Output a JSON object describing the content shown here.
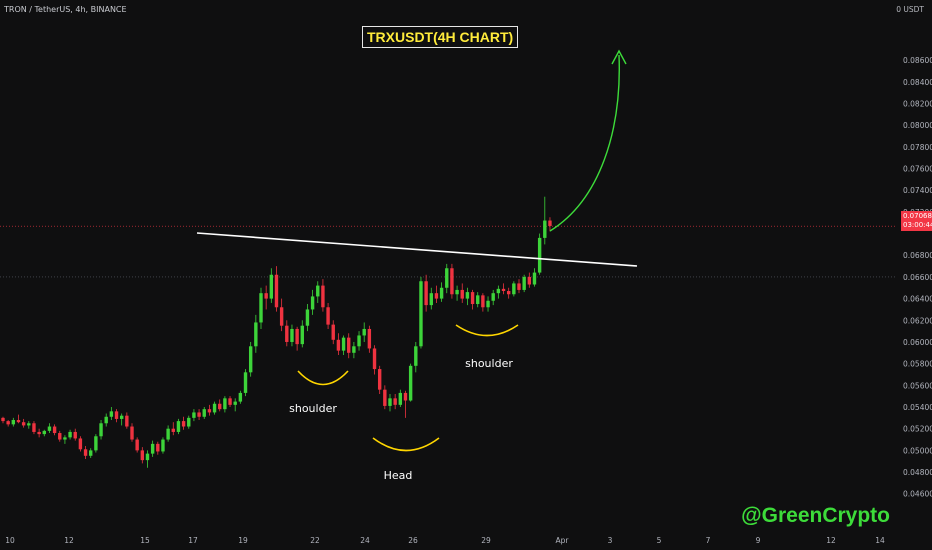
{
  "header": {
    "symbol_line": "TRON / TetherUS, 4h, BINANCE",
    "currency": "0 USDT",
    "title": "TRXUSDT(4H CHART)",
    "watermark": "@GreenCrypto"
  },
  "annotations": {
    "left_shoulder": "shoulder",
    "head": "Head",
    "right_shoulder": "shoulder"
  },
  "price_tag": {
    "price": "0.07068",
    "countdown": "03:00:44"
  },
  "colors": {
    "background": "#0f0f10",
    "up": "#3dd43a",
    "down": "#ef3340",
    "neckline": "#ffffff",
    "annotation_arc": "#ffd600",
    "arrow": "#3ddc3a",
    "current_price_line": "#f23645",
    "title_text": "#ffeb3b"
  },
  "chart_data": {
    "type": "candlestick",
    "title": "TRXUSDT(4H CHART)",
    "symbol": "TRON / TetherUS",
    "interval": "4h",
    "exchange": "BINANCE",
    "ylim": [
      0.0445,
      0.0885
    ],
    "y_ticks": [
      "0.08600",
      "0.08400",
      "0.08200",
      "0.08000",
      "0.07800",
      "0.07600",
      "0.07400",
      "0.07200",
      "0.06800",
      "0.06600",
      "0.06400",
      "0.06200",
      "0.06000",
      "0.05800",
      "0.05600",
      "0.05400",
      "0.05200",
      "0.05000",
      "0.04800",
      "0.04600"
    ],
    "x_ticks": [
      "10",
      "12",
      "15",
      "17",
      "19",
      "22",
      "24",
      "26",
      "29",
      "Apr",
      "3",
      "5",
      "7",
      "9",
      "12",
      "14"
    ],
    "current_price": 0.07068,
    "reference_price": 0.066,
    "grid": false,
    "patterns": [
      "inverse head and shoulders",
      "neckline breakout"
    ],
    "series": [
      {
        "candles": [
          [
            0.053,
            0.0531,
            0.0525,
            0.0527
          ],
          [
            0.0527,
            0.0528,
            0.0522,
            0.0524
          ],
          [
            0.0524,
            0.053,
            0.0522,
            0.0528
          ],
          [
            0.0528,
            0.0533,
            0.0525,
            0.0526
          ],
          [
            0.0526,
            0.0529,
            0.0521,
            0.0523
          ],
          [
            0.0523,
            0.0527,
            0.052,
            0.0525
          ],
          [
            0.0525,
            0.0527,
            0.0515,
            0.0517
          ],
          [
            0.0517,
            0.052,
            0.0512,
            0.0515
          ],
          [
            0.0515,
            0.0519,
            0.0513,
            0.0518
          ],
          [
            0.0518,
            0.0525,
            0.0516,
            0.0522
          ],
          [
            0.0522,
            0.0524,
            0.0514,
            0.0516
          ],
          [
            0.0516,
            0.0518,
            0.0508,
            0.051
          ],
          [
            0.051,
            0.0514,
            0.0506,
            0.0512
          ],
          [
            0.0512,
            0.0519,
            0.051,
            0.0517
          ],
          [
            0.0517,
            0.052,
            0.0509,
            0.0511
          ],
          [
            0.0511,
            0.0513,
            0.0499,
            0.0501
          ],
          [
            0.0501,
            0.0504,
            0.0492,
            0.0495
          ],
          [
            0.0495,
            0.0502,
            0.0493,
            0.05
          ],
          [
            0.05,
            0.0515,
            0.0498,
            0.0513
          ],
          [
            0.0513,
            0.0528,
            0.051,
            0.0525
          ],
          [
            0.0525,
            0.0534,
            0.0522,
            0.0531
          ],
          [
            0.0531,
            0.054,
            0.0528,
            0.0536
          ],
          [
            0.0536,
            0.0538,
            0.0526,
            0.0529
          ],
          [
            0.0529,
            0.0534,
            0.0523,
            0.0532
          ],
          [
            0.0532,
            0.0535,
            0.052,
            0.0522
          ],
          [
            0.0522,
            0.0525,
            0.0508,
            0.051
          ],
          [
            0.051,
            0.0512,
            0.0498,
            0.05
          ],
          [
            0.05,
            0.0503,
            0.0488,
            0.0491
          ],
          [
            0.0491,
            0.05,
            0.0484,
            0.0497
          ],
          [
            0.0497,
            0.0509,
            0.0494,
            0.0506
          ],
          [
            0.0506,
            0.0508,
            0.0496,
            0.0499
          ],
          [
            0.0499,
            0.0512,
            0.0497,
            0.051
          ],
          [
            0.051,
            0.0523,
            0.0508,
            0.052
          ],
          [
            0.052,
            0.0526,
            0.0514,
            0.0517
          ],
          [
            0.0517,
            0.0529,
            0.0515,
            0.0527
          ],
          [
            0.0527,
            0.0531,
            0.0519,
            0.0522
          ],
          [
            0.0522,
            0.0532,
            0.052,
            0.053
          ],
          [
            0.053,
            0.0538,
            0.0527,
            0.0535
          ],
          [
            0.0535,
            0.0538,
            0.0528,
            0.0531
          ],
          [
            0.0531,
            0.054,
            0.0529,
            0.0538
          ],
          [
            0.0538,
            0.0542,
            0.0532,
            0.0535
          ],
          [
            0.0535,
            0.0545,
            0.0533,
            0.0543
          ],
          [
            0.0543,
            0.0547,
            0.0536,
            0.0538
          ],
          [
            0.0538,
            0.055,
            0.0535,
            0.0548
          ],
          [
            0.0548,
            0.055,
            0.054,
            0.0542
          ],
          [
            0.0542,
            0.0548,
            0.0536,
            0.0545
          ],
          [
            0.0545,
            0.0555,
            0.0543,
            0.0553
          ],
          [
            0.0553,
            0.0575,
            0.055,
            0.0572
          ],
          [
            0.0572,
            0.06,
            0.0568,
            0.0596
          ],
          [
            0.0596,
            0.0625,
            0.059,
            0.0618
          ],
          [
            0.0618,
            0.065,
            0.0612,
            0.0645
          ],
          [
            0.0645,
            0.0652,
            0.063,
            0.064
          ],
          [
            0.064,
            0.0668,
            0.0636,
            0.0662
          ],
          [
            0.0662,
            0.067,
            0.0628,
            0.0632
          ],
          [
            0.0632,
            0.064,
            0.061,
            0.0615
          ],
          [
            0.0615,
            0.062,
            0.0596,
            0.06
          ],
          [
            0.06,
            0.0616,
            0.0596,
            0.0612
          ],
          [
            0.0612,
            0.0614,
            0.0592,
            0.0598
          ],
          [
            0.0598,
            0.062,
            0.0595,
            0.0615
          ],
          [
            0.0615,
            0.0635,
            0.061,
            0.063
          ],
          [
            0.063,
            0.0648,
            0.0625,
            0.0642
          ],
          [
            0.0642,
            0.0656,
            0.0636,
            0.0652
          ],
          [
            0.0652,
            0.0658,
            0.0628,
            0.0632
          ],
          [
            0.0632,
            0.0636,
            0.0612,
            0.0616
          ],
          [
            0.0616,
            0.062,
            0.0598,
            0.0602
          ],
          [
            0.0602,
            0.0608,
            0.0588,
            0.0592
          ],
          [
            0.0592,
            0.0606,
            0.0588,
            0.0604
          ],
          [
            0.0604,
            0.0608,
            0.0585,
            0.059
          ],
          [
            0.059,
            0.06,
            0.0585,
            0.0596
          ],
          [
            0.0596,
            0.061,
            0.0592,
            0.0606
          ],
          [
            0.0606,
            0.0618,
            0.06,
            0.0612
          ],
          [
            0.0612,
            0.0615,
            0.059,
            0.0594
          ],
          [
            0.0594,
            0.0597,
            0.057,
            0.0575
          ],
          [
            0.0575,
            0.0578,
            0.0552,
            0.0556
          ],
          [
            0.0556,
            0.056,
            0.0538,
            0.0541
          ],
          [
            0.0541,
            0.0552,
            0.0536,
            0.0548
          ],
          [
            0.0548,
            0.0552,
            0.0538,
            0.0542
          ],
          [
            0.0542,
            0.0556,
            0.054,
            0.0553
          ],
          [
            0.0553,
            0.0555,
            0.053,
            0.0546
          ],
          [
            0.0546,
            0.058,
            0.0545,
            0.0578
          ],
          [
            0.0578,
            0.06,
            0.0572,
            0.0596
          ],
          [
            0.0596,
            0.066,
            0.0594,
            0.0656
          ],
          [
            0.0656,
            0.0662,
            0.0628,
            0.0634
          ],
          [
            0.0634,
            0.065,
            0.063,
            0.0645
          ],
          [
            0.0645,
            0.0652,
            0.0636,
            0.064
          ],
          [
            0.064,
            0.0655,
            0.0637,
            0.065
          ],
          [
            0.065,
            0.0672,
            0.0645,
            0.0668
          ],
          [
            0.0668,
            0.0672,
            0.064,
            0.0644
          ],
          [
            0.0644,
            0.0652,
            0.0638,
            0.0648
          ],
          [
            0.0648,
            0.0654,
            0.0636,
            0.064
          ],
          [
            0.064,
            0.065,
            0.0634,
            0.0646
          ],
          [
            0.0646,
            0.0648,
            0.063,
            0.0635
          ],
          [
            0.0635,
            0.0646,
            0.0632,
            0.0643
          ],
          [
            0.0643,
            0.0645,
            0.0628,
            0.0632
          ],
          [
            0.0632,
            0.0642,
            0.0628,
            0.0638
          ],
          [
            0.0638,
            0.0648,
            0.0634,
            0.0645
          ],
          [
            0.0645,
            0.0652,
            0.064,
            0.0649
          ],
          [
            0.0649,
            0.0654,
            0.0644,
            0.0647
          ],
          [
            0.0647,
            0.065,
            0.064,
            0.0644
          ],
          [
            0.0644,
            0.0656,
            0.0642,
            0.0654
          ],
          [
            0.0654,
            0.0658,
            0.0645,
            0.0648
          ],
          [
            0.0648,
            0.0662,
            0.0646,
            0.066
          ],
          [
            0.066,
            0.0664,
            0.065,
            0.0653
          ],
          [
            0.0653,
            0.0668,
            0.0651,
            0.0664
          ],
          [
            0.0664,
            0.07,
            0.0662,
            0.0696
          ],
          [
            0.0696,
            0.0734,
            0.069,
            0.0712
          ],
          [
            0.0712,
            0.0715,
            0.0702,
            0.0707
          ]
        ]
      }
    ],
    "annotations": [
      {
        "label": "shoulder",
        "role": "left shoulder"
      },
      {
        "label": "Head",
        "role": "head"
      },
      {
        "label": "shoulder",
        "role": "right shoulder"
      }
    ]
  }
}
